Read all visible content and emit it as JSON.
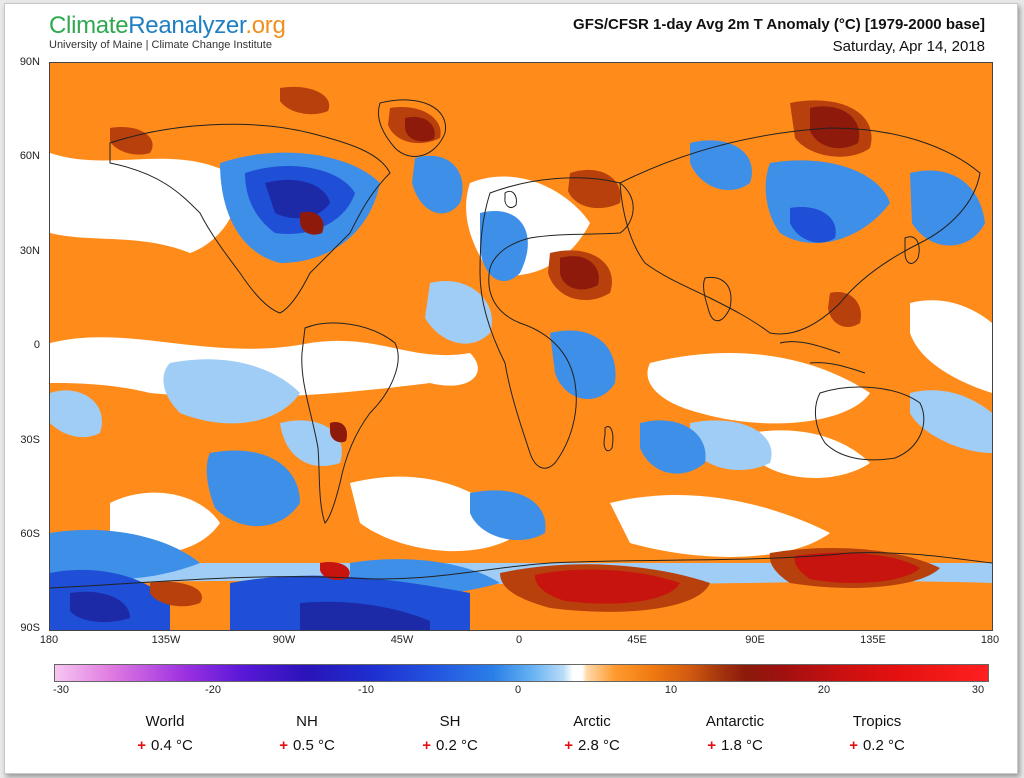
{
  "header": {
    "logo_part1": "Climate",
    "logo_part2": "Reanalyzer",
    "logo_part3": ".org",
    "logo_subtitle": "University of Maine | Climate Change Institute",
    "title": "GFS/CFSR 1-day Avg 2m T Anomaly (°C) [1979-2000 base]",
    "date": "Saturday, Apr 14, 2018"
  },
  "map": {
    "lat_labels": [
      "90N",
      "60N",
      "30N",
      "0",
      "30S",
      "60S",
      "90S"
    ],
    "lon_labels": [
      "180",
      "135W",
      "90W",
      "45W",
      "0",
      "45E",
      "90E",
      "135E",
      "180"
    ],
    "colors": {
      "warm": "#ff8c1a",
      "warm_strong": "#b8400c",
      "hot": "#8e1a0c",
      "hottest": "#c8140e",
      "cool": "#9fcdf5",
      "cold": "#3d8fe8",
      "colder": "#1e4fd6",
      "coldest": "#1c2aa8",
      "neutral": "#ffffff",
      "land_lines": "#222222"
    }
  },
  "colorbar": {
    "ticks": [
      "-30",
      "-20",
      "-10",
      "0",
      "10",
      "20",
      "30"
    ]
  },
  "stats": [
    {
      "name": "World",
      "sign": "+",
      "value": "0.4 °C"
    },
    {
      "name": "NH",
      "sign": "+",
      "value": "0.5 °C"
    },
    {
      "name": "SH",
      "sign": "+",
      "value": "0.2 °C"
    },
    {
      "name": "Arctic",
      "sign": "+",
      "value": "2.8 °C"
    },
    {
      "name": "Antarctic",
      "sign": "+",
      "value": "1.8 °C"
    },
    {
      "name": "Tropics",
      "sign": "+",
      "value": "0.2 °C"
    }
  ]
}
